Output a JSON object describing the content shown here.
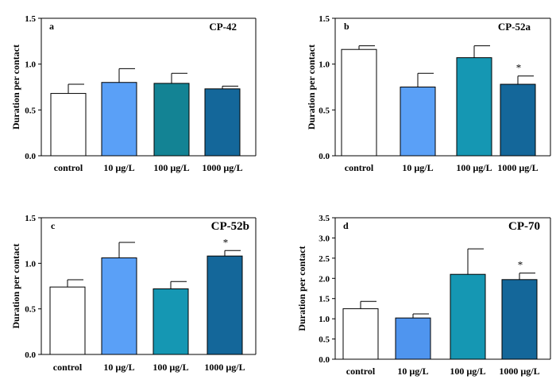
{
  "colors": {
    "white": "#ffffff",
    "light_blue": "#5aa0f7",
    "teal_dark": "#138394",
    "teal": "#1597b3",
    "steel_blue": "#14679a",
    "blue_mid": "#4f95ef",
    "axis": "#000000"
  },
  "chart_data": [
    {
      "type": "bar",
      "panel": "a",
      "title": "CP-42",
      "ylabel": "Duration per contact",
      "ylim": [
        0,
        1.5
      ],
      "yticks": [
        "0.0",
        "0.5",
        "1.0",
        "1.5"
      ],
      "categories": [
        "control",
        "10 µg/L",
        "100 µg/L",
        "1000 µg/L"
      ],
      "values": [
        0.68,
        0.8,
        0.79,
        0.73
      ],
      "errors": [
        0.1,
        0.15,
        0.11,
        0.03
      ],
      "significance": [
        "",
        "",
        "",
        ""
      ],
      "bar_colors": [
        "#ffffff",
        "#5aa0f7",
        "#138394",
        "#14679a"
      ]
    },
    {
      "type": "bar",
      "panel": "b",
      "title": "CP-52a",
      "ylabel": "Duration per contact",
      "ylim": [
        0,
        1.5
      ],
      "yticks": [
        "0.0",
        "0.5",
        "1.0",
        "1.5"
      ],
      "categories": [
        "control",
        "10 µg/L",
        "100 µg/L",
        "1000 µg/L"
      ],
      "values": [
        1.16,
        0.75,
        1.07,
        0.78
      ],
      "errors": [
        0.04,
        0.15,
        0.13,
        0.09
      ],
      "significance": [
        "",
        "",
        "",
        "*"
      ],
      "bar_colors": [
        "#ffffff",
        "#5aa0f7",
        "#1597b3",
        "#14679a"
      ]
    },
    {
      "type": "bar",
      "panel": "c",
      "title": "CP-52b",
      "ylabel": "Duration per contact",
      "ylim": [
        0,
        1.5
      ],
      "yticks": [
        "0.0",
        "0.5",
        "1.0",
        "1.5"
      ],
      "categories": [
        "control",
        "10 µg/L",
        "100 µg/L",
        "1000 µg/L"
      ],
      "values": [
        0.74,
        1.06,
        0.72,
        1.08
      ],
      "errors": [
        0.08,
        0.17,
        0.08,
        0.06
      ],
      "significance": [
        "",
        "",
        "",
        "*"
      ],
      "bar_colors": [
        "#ffffff",
        "#5aa0f7",
        "#1597b3",
        "#14679a"
      ]
    },
    {
      "type": "bar",
      "panel": "d",
      "title": "CP-70",
      "ylabel": "Duration per contact",
      "ylim": [
        0,
        3.5
      ],
      "yticks": [
        "0.0",
        "0.5",
        "1.0",
        "1.5",
        "2.0",
        "2.5",
        "3.0",
        "3.5"
      ],
      "categories": [
        "control",
        "10 µg/L",
        "100 µg/L",
        "1000 µg/L"
      ],
      "values": [
        1.25,
        1.02,
        2.1,
        1.97
      ],
      "errors": [
        0.18,
        0.1,
        0.63,
        0.16
      ],
      "significance": [
        "",
        "",
        "",
        "*"
      ],
      "bar_colors": [
        "#ffffff",
        "#4f95ef",
        "#1597b3",
        "#14679a"
      ]
    }
  ]
}
